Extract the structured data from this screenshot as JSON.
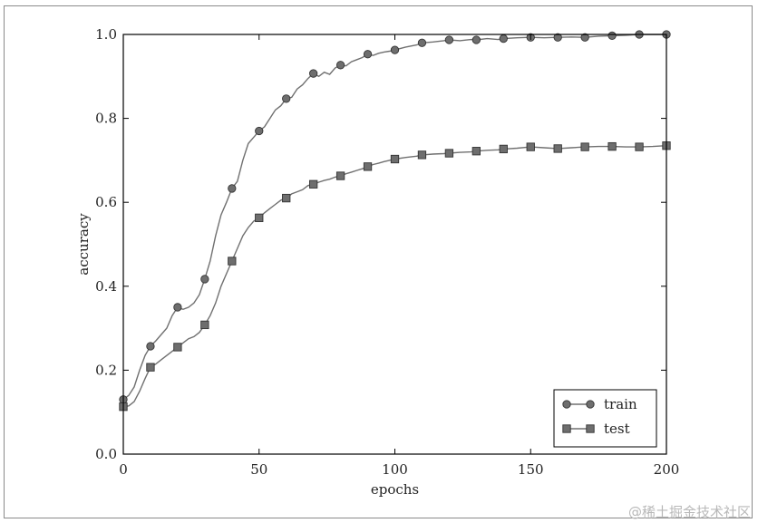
{
  "watermark": "@稀土掘金技术社区",
  "chart_data": {
    "type": "line",
    "title": "",
    "xlabel": "epochs",
    "ylabel": "accuracy",
    "xlim": [
      0,
      200
    ],
    "ylim": [
      0.0,
      1.0
    ],
    "xticks": [
      "0",
      "50",
      "100",
      "150",
      "200"
    ],
    "yticks": [
      "0.0",
      "0.2",
      "0.4",
      "0.6",
      "0.8",
      "1.0"
    ],
    "grid": false,
    "legend_position": "lower-right",
    "series_color": "#707070",
    "marker_color": "#6e6e6e",
    "series": [
      {
        "name": "train",
        "marker": "circle",
        "markers": [
          [
            0,
            0.13
          ],
          [
            10,
            0.257
          ],
          [
            20,
            0.35
          ],
          [
            30,
            0.417
          ],
          [
            40,
            0.633
          ],
          [
            50,
            0.77
          ],
          [
            60,
            0.847
          ],
          [
            70,
            0.907
          ],
          [
            80,
            0.927
          ],
          [
            90,
            0.953
          ],
          [
            100,
            0.963
          ],
          [
            110,
            0.98
          ],
          [
            120,
            0.987
          ],
          [
            130,
            0.987
          ],
          [
            140,
            0.99
          ],
          [
            150,
            0.993
          ],
          [
            160,
            0.993
          ],
          [
            170,
            0.993
          ],
          [
            180,
            0.997
          ],
          [
            190,
            1.0
          ],
          [
            200,
            1.0
          ]
        ],
        "line": [
          [
            0,
            0.13
          ],
          [
            2,
            0.14
          ],
          [
            4,
            0.16
          ],
          [
            6,
            0.2
          ],
          [
            8,
            0.235
          ],
          [
            10,
            0.257
          ],
          [
            12,
            0.27
          ],
          [
            14,
            0.285
          ],
          [
            16,
            0.3
          ],
          [
            18,
            0.33
          ],
          [
            20,
            0.35
          ],
          [
            22,
            0.345
          ],
          [
            24,
            0.35
          ],
          [
            26,
            0.36
          ],
          [
            28,
            0.38
          ],
          [
            30,
            0.417
          ],
          [
            32,
            0.46
          ],
          [
            34,
            0.52
          ],
          [
            36,
            0.57
          ],
          [
            38,
            0.6
          ],
          [
            40,
            0.633
          ],
          [
            42,
            0.65
          ],
          [
            44,
            0.7
          ],
          [
            46,
            0.74
          ],
          [
            48,
            0.755
          ],
          [
            50,
            0.77
          ],
          [
            52,
            0.78
          ],
          [
            54,
            0.8
          ],
          [
            56,
            0.82
          ],
          [
            58,
            0.83
          ],
          [
            60,
            0.847
          ],
          [
            62,
            0.85
          ],
          [
            64,
            0.87
          ],
          [
            66,
            0.88
          ],
          [
            68,
            0.895
          ],
          [
            70,
            0.907
          ],
          [
            72,
            0.9
          ],
          [
            74,
            0.91
          ],
          [
            76,
            0.905
          ],
          [
            78,
            0.92
          ],
          [
            80,
            0.927
          ],
          [
            82,
            0.925
          ],
          [
            84,
            0.935
          ],
          [
            86,
            0.94
          ],
          [
            88,
            0.945
          ],
          [
            90,
            0.953
          ],
          [
            92,
            0.95
          ],
          [
            94,
            0.955
          ],
          [
            96,
            0.958
          ],
          [
            98,
            0.96
          ],
          [
            100,
            0.963
          ],
          [
            104,
            0.97
          ],
          [
            108,
            0.975
          ],
          [
            110,
            0.98
          ],
          [
            114,
            0.982
          ],
          [
            118,
            0.985
          ],
          [
            120,
            0.987
          ],
          [
            124,
            0.985
          ],
          [
            128,
            0.988
          ],
          [
            130,
            0.987
          ],
          [
            134,
            0.99
          ],
          [
            138,
            0.988
          ],
          [
            140,
            0.99
          ],
          [
            145,
            0.992
          ],
          [
            150,
            0.993
          ],
          [
            155,
            0.992
          ],
          [
            160,
            0.993
          ],
          [
            165,
            0.994
          ],
          [
            170,
            0.993
          ],
          [
            175,
            0.996
          ],
          [
            180,
            0.997
          ],
          [
            185,
            0.998
          ],
          [
            190,
            1.0
          ],
          [
            195,
            1.0
          ],
          [
            200,
            1.0
          ]
        ]
      },
      {
        "name": "test",
        "marker": "square",
        "markers": [
          [
            0,
            0.113
          ],
          [
            10,
            0.207
          ],
          [
            20,
            0.255
          ],
          [
            30,
            0.308
          ],
          [
            40,
            0.46
          ],
          [
            50,
            0.563
          ],
          [
            60,
            0.61
          ],
          [
            70,
            0.643
          ],
          [
            80,
            0.663
          ],
          [
            90,
            0.685
          ],
          [
            100,
            0.703
          ],
          [
            110,
            0.713
          ],
          [
            120,
            0.717
          ],
          [
            130,
            0.722
          ],
          [
            140,
            0.727
          ],
          [
            150,
            0.732
          ],
          [
            160,
            0.728
          ],
          [
            170,
            0.732
          ],
          [
            180,
            0.733
          ],
          [
            190,
            0.732
          ],
          [
            200,
            0.735
          ]
        ],
        "line": [
          [
            0,
            0.113
          ],
          [
            2,
            0.115
          ],
          [
            4,
            0.125
          ],
          [
            6,
            0.15
          ],
          [
            8,
            0.18
          ],
          [
            10,
            0.207
          ],
          [
            12,
            0.215
          ],
          [
            14,
            0.225
          ],
          [
            16,
            0.235
          ],
          [
            18,
            0.245
          ],
          [
            20,
            0.255
          ],
          [
            22,
            0.265
          ],
          [
            24,
            0.275
          ],
          [
            26,
            0.28
          ],
          [
            28,
            0.29
          ],
          [
            30,
            0.308
          ],
          [
            32,
            0.33
          ],
          [
            34,
            0.36
          ],
          [
            36,
            0.4
          ],
          [
            38,
            0.43
          ],
          [
            40,
            0.46
          ],
          [
            42,
            0.49
          ],
          [
            44,
            0.52
          ],
          [
            46,
            0.54
          ],
          [
            48,
            0.555
          ],
          [
            50,
            0.563
          ],
          [
            52,
            0.575
          ],
          [
            54,
            0.585
          ],
          [
            56,
            0.595
          ],
          [
            58,
            0.605
          ],
          [
            60,
            0.61
          ],
          [
            62,
            0.62
          ],
          [
            64,
            0.625
          ],
          [
            66,
            0.63
          ],
          [
            68,
            0.64
          ],
          [
            70,
            0.643
          ],
          [
            72,
            0.648
          ],
          [
            74,
            0.652
          ],
          [
            76,
            0.655
          ],
          [
            78,
            0.66
          ],
          [
            80,
            0.663
          ],
          [
            82,
            0.668
          ],
          [
            84,
            0.672
          ],
          [
            86,
            0.676
          ],
          [
            88,
            0.68
          ],
          [
            90,
            0.685
          ],
          [
            92,
            0.69
          ],
          [
            94,
            0.693
          ],
          [
            96,
            0.697
          ],
          [
            98,
            0.7
          ],
          [
            100,
            0.703
          ],
          [
            104,
            0.707
          ],
          [
            108,
            0.71
          ],
          [
            110,
            0.713
          ],
          [
            114,
            0.715
          ],
          [
            118,
            0.716
          ],
          [
            120,
            0.717
          ],
          [
            124,
            0.719
          ],
          [
            128,
            0.72
          ],
          [
            130,
            0.722
          ],
          [
            134,
            0.724
          ],
          [
            138,
            0.725
          ],
          [
            140,
            0.727
          ],
          [
            145,
            0.729
          ],
          [
            150,
            0.732
          ],
          [
            155,
            0.73
          ],
          [
            160,
            0.728
          ],
          [
            165,
            0.73
          ],
          [
            170,
            0.732
          ],
          [
            175,
            0.733
          ],
          [
            180,
            0.733
          ],
          [
            185,
            0.732
          ],
          [
            190,
            0.732
          ],
          [
            195,
            0.733
          ],
          [
            200,
            0.735
          ]
        ]
      }
    ]
  }
}
